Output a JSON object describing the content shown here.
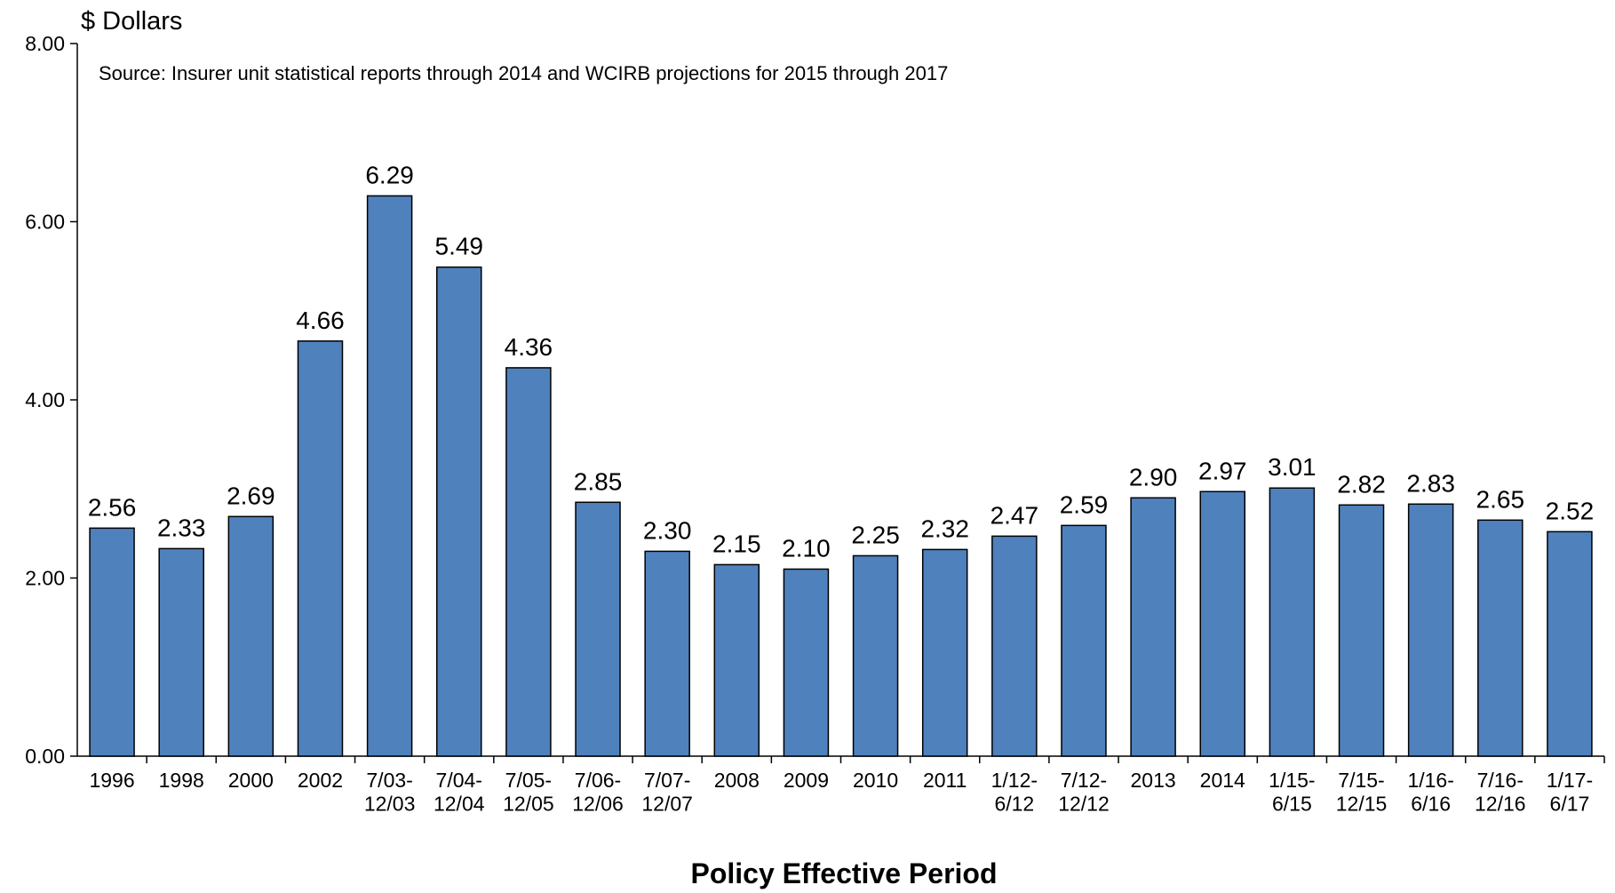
{
  "chart_data": {
    "type": "bar",
    "y_label": "$ Dollars",
    "annotation": "Source: Insurer unit statistical reports through 2014 and WCIRB projections for 2015 through 2017",
    "x_label": "Policy Effective Period",
    "categories": [
      "1996",
      "1998",
      "2000",
      "2002",
      "7/03-\n12/03",
      "7/04-\n12/04",
      "7/05-\n12/05",
      "7/06-\n12/06",
      "7/07-\n12/07",
      "2008",
      "2009",
      "2010",
      "2011",
      "1/12-\n6/12",
      "7/12-\n12/12",
      "2013",
      "2014",
      "1/15-\n6/15",
      "7/15-\n12/15",
      "1/16-\n6/16",
      "7/16-\n12/16",
      "1/17-\n6/17"
    ],
    "values": [
      2.56,
      2.33,
      2.69,
      4.66,
      6.29,
      5.49,
      4.36,
      2.85,
      2.3,
      2.15,
      2.1,
      2.25,
      2.32,
      2.47,
      2.59,
      2.9,
      2.97,
      3.01,
      2.82,
      2.83,
      2.65,
      2.52
    ],
    "value_labels": [
      "2.56",
      "2.33",
      "2.69",
      "4.66",
      "6.29",
      "5.49",
      "4.36",
      "2.85",
      "2.30",
      "2.15",
      "2.10",
      "2.25",
      "2.32",
      "2.47",
      "2.59",
      "2.90",
      "2.97",
      "3.01",
      "2.82",
      "2.83",
      "2.65",
      "2.52"
    ],
    "color": "#4f81bd",
    "ylim": [
      0,
      8
    ],
    "yticks": [
      {
        "value": 0,
        "label": "0.00"
      },
      {
        "value": 2,
        "label": "2.00"
      },
      {
        "value": 4,
        "label": "4.00"
      },
      {
        "value": 6,
        "label": "6.00"
      },
      {
        "value": 8,
        "label": "8.00"
      }
    ],
    "grid": false
  }
}
